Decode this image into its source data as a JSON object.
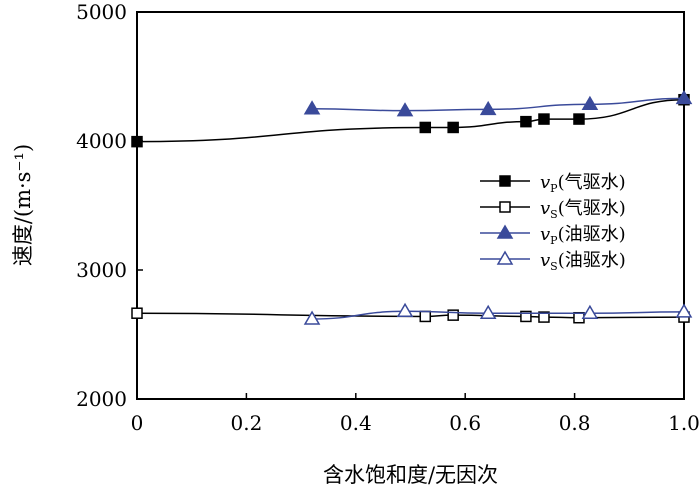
{
  "chart_data": {
    "type": "line",
    "xlabel": "含水饱和度/无因次",
    "ylabel": "速度/(m·s⁻¹)",
    "xlim": [
      0,
      1.0
    ],
    "ylim": [
      2000,
      5000
    ],
    "xticks": [
      "0",
      "0.2",
      "0.4",
      "0.6",
      "0.8",
      "1.0"
    ],
    "yticks": [
      "2000",
      "3000",
      "4000",
      "5000"
    ],
    "legend_position": "right-middle",
    "series": [
      {
        "name": "vP(气驱水)",
        "sym": "P",
        "label": "(气驱水)",
        "marker": "square-filled",
        "color": "#000000",
        "x": [
          0,
          0.527,
          0.578,
          0.711,
          0.744,
          0.808,
          1.0
        ],
        "y": [
          3995,
          4105,
          4105,
          4150,
          4170,
          4170,
          4320
        ]
      },
      {
        "name": "vS(气驱水)",
        "sym": "S",
        "label": "(气驱水)",
        "marker": "square-open",
        "color": "#000000",
        "x": [
          0,
          0.527,
          0.578,
          0.711,
          0.744,
          0.808,
          1.0
        ],
        "y": [
          2665,
          2640,
          2650,
          2640,
          2635,
          2630,
          2635
        ]
      },
      {
        "name": "vP(油驱水)",
        "sym": "P",
        "label": "(油驱水)",
        "marker": "triangle-filled",
        "color": "#3a4a9a",
        "x": [
          0.32,
          0.49,
          0.642,
          0.828,
          1.0
        ],
        "y": [
          4250,
          4235,
          4245,
          4285,
          4330
        ]
      },
      {
        "name": "vS(油驱水)",
        "sym": "S",
        "label": "(油驱水)",
        "marker": "triangle-open",
        "color": "#3a4a9a",
        "x": [
          0.32,
          0.49,
          0.642,
          0.828,
          1.0
        ],
        "y": [
          2620,
          2680,
          2665,
          2665,
          2675
        ]
      }
    ]
  }
}
